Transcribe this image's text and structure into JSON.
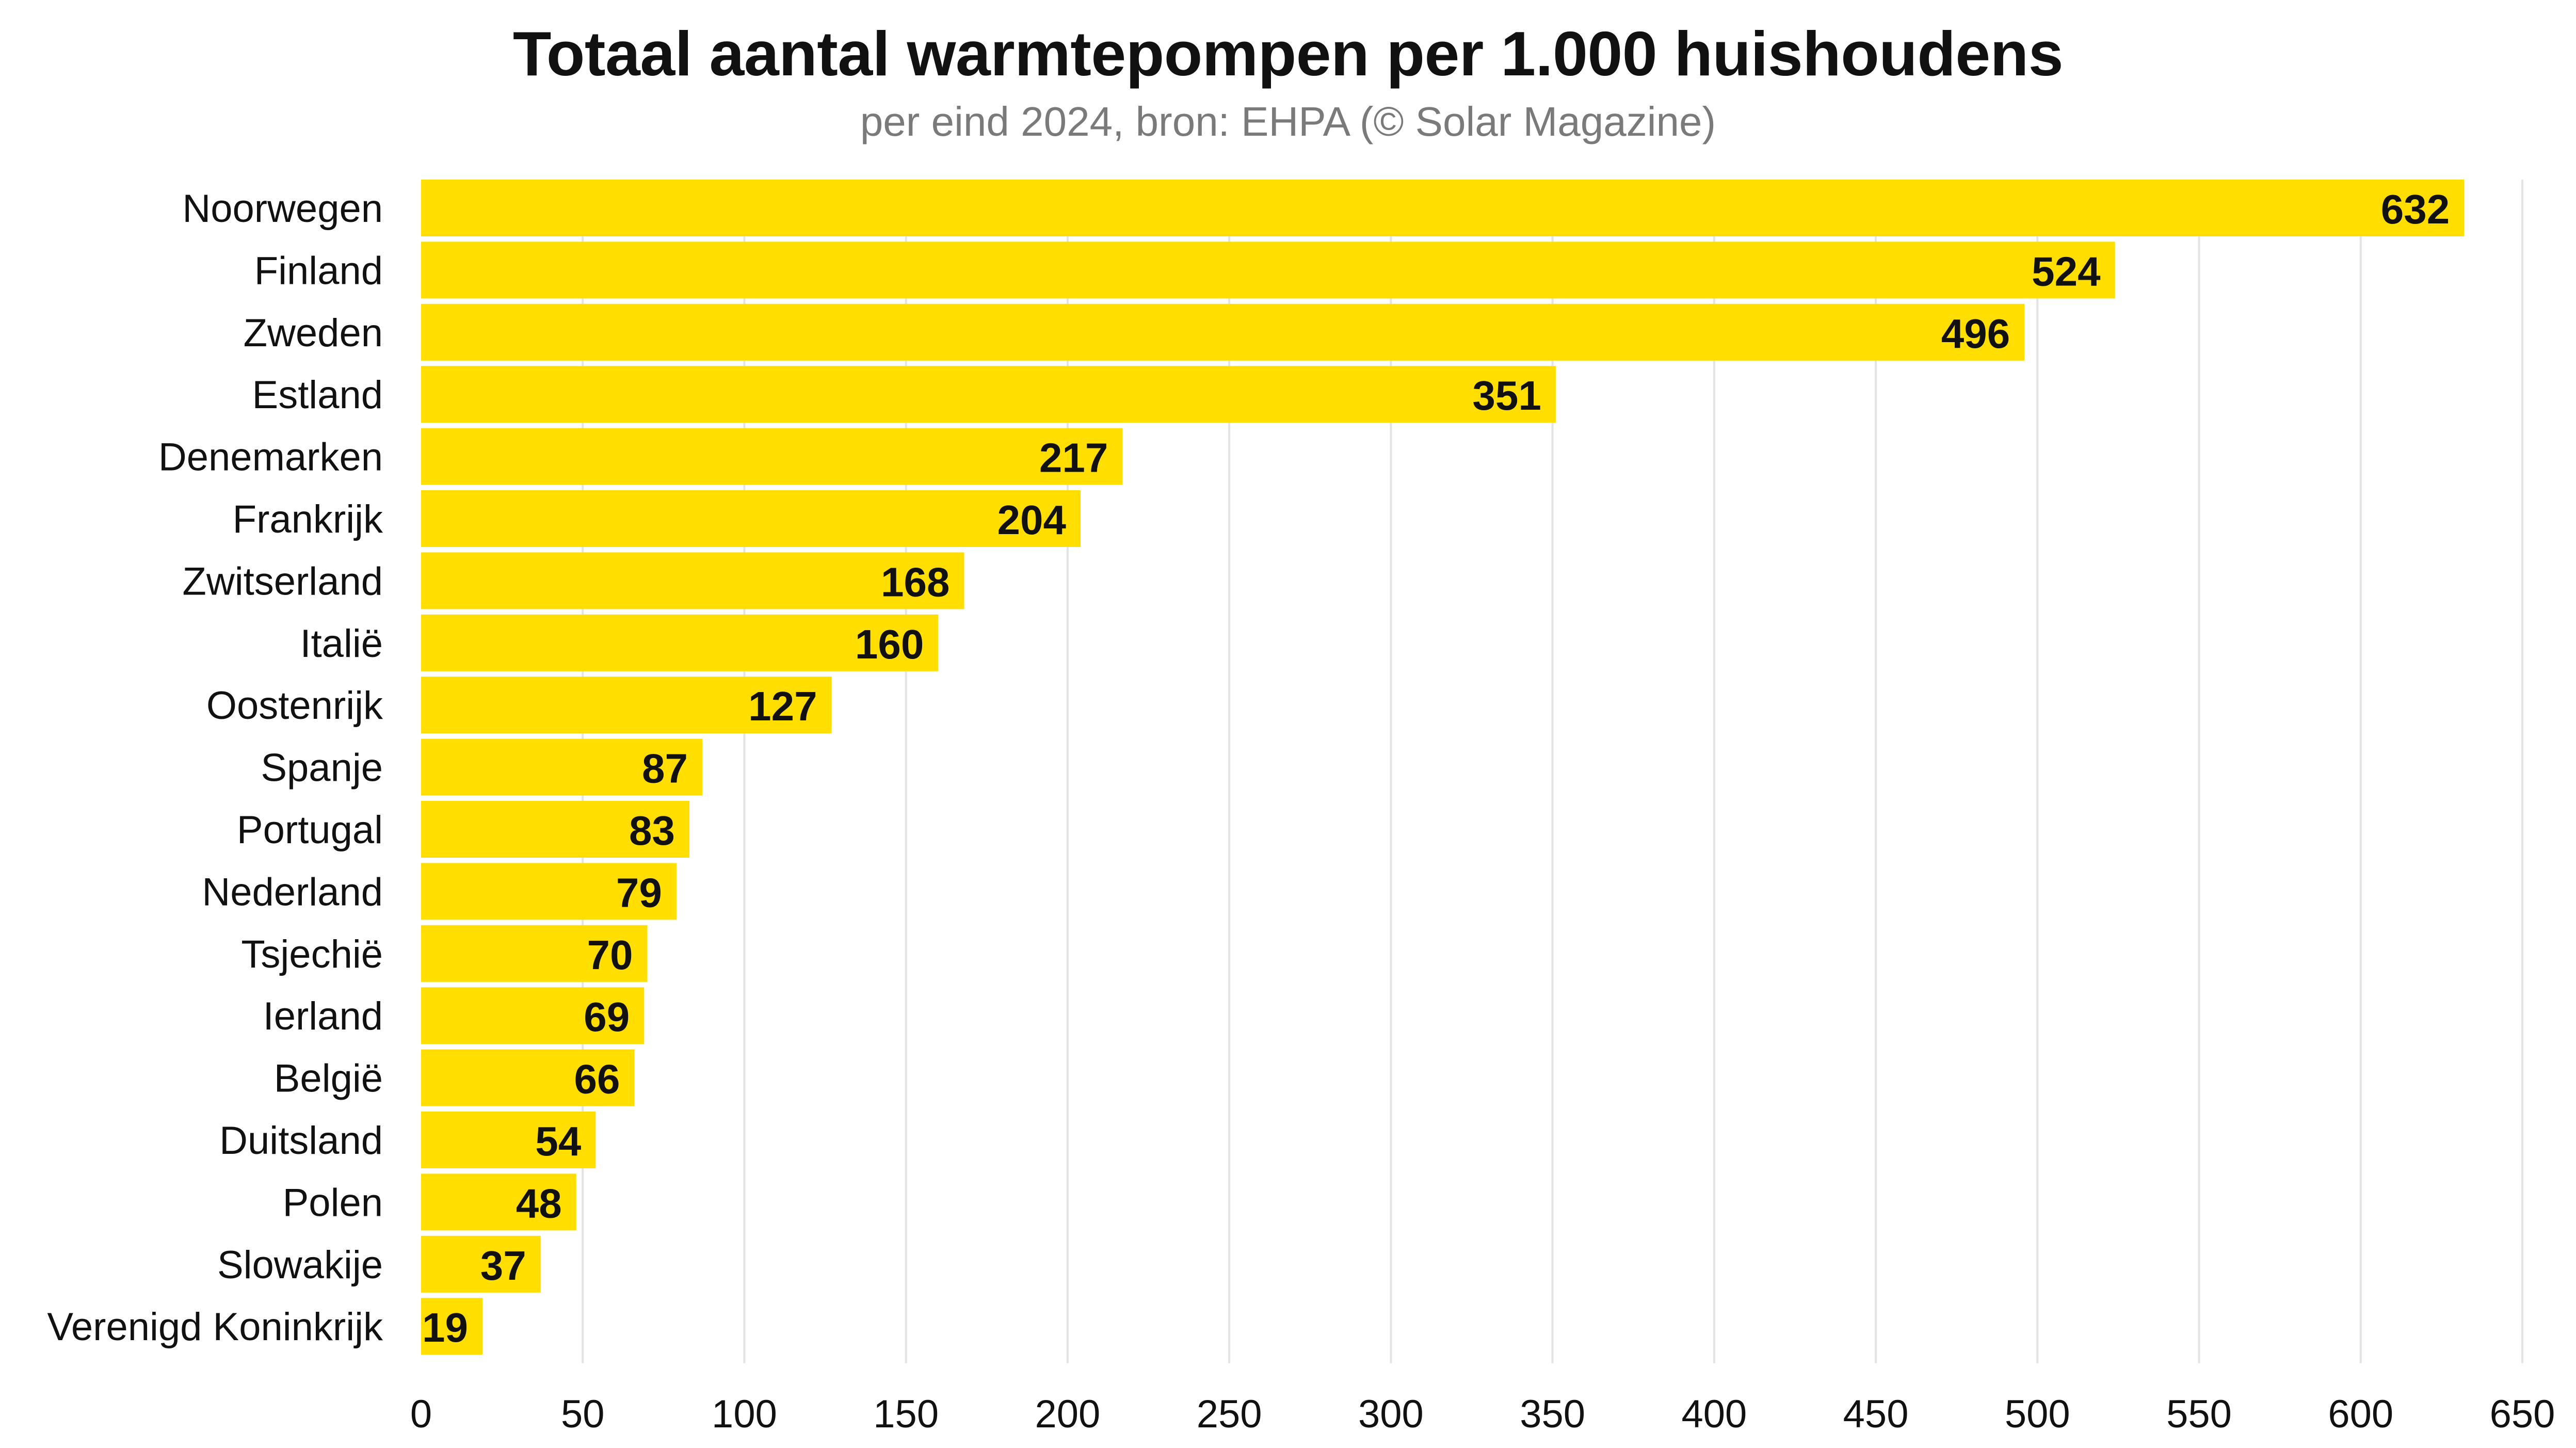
{
  "chart_data": {
    "type": "bar",
    "orientation": "horizontal",
    "title": "Totaal aantal warmtepompen per 1.000 huishoudens",
    "subtitle": "per eind 2024, bron: EHPA (© Solar Magazine)",
    "categories": [
      "Noorwegen",
      "Finland",
      "Zweden",
      "Estland",
      "Denemarken",
      "Frankrijk",
      "Zwitserland",
      "Italië",
      "Oostenrijk",
      "Spanje",
      "Portugal",
      "Nederland",
      "Tsjechië",
      "Ierland",
      "België",
      "Duitsland",
      "Polen",
      "Slowakije",
      "Verenigd Koninkrijk"
    ],
    "values": [
      632,
      524,
      496,
      351,
      217,
      204,
      168,
      160,
      127,
      87,
      83,
      79,
      70,
      69,
      66,
      54,
      48,
      37,
      19
    ],
    "xlim": [
      0,
      650
    ],
    "xticks": [
      "0",
      "50",
      "100",
      "150",
      "200",
      "250",
      "300",
      "350",
      "400",
      "450",
      "500",
      "550",
      "600",
      "650"
    ],
    "grid": true,
    "bar_color": "#FFDE00",
    "grid_color": "#e3e3e3"
  }
}
